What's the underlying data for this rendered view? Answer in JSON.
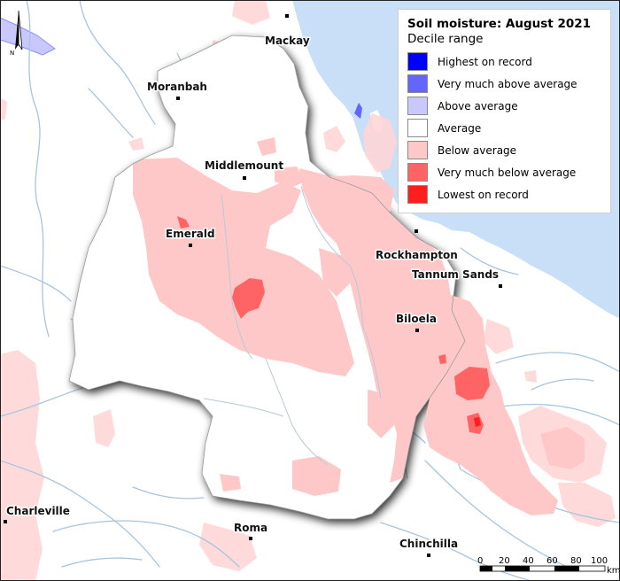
{
  "legend": {
    "title": "Soil moisture: August 2021",
    "subtitle": "Decile range",
    "items": [
      {
        "label": "Highest on record",
        "color": "#0000ff"
      },
      {
        "label": "Very much above average",
        "color": "#6464ff"
      },
      {
        "label": "Above average",
        "color": "#c8c8ff"
      },
      {
        "label": "Average",
        "color": "#ffffff"
      },
      {
        "label": "Below average",
        "color": "#ffc8c8"
      },
      {
        "label": "Very much below average",
        "color": "#ff6464"
      },
      {
        "label": "Lowest on record",
        "color": "#ff1e1e"
      }
    ]
  },
  "towns": {
    "mackay": "Mackay",
    "moranbah": "Moranbah",
    "middlemount": "Middlemount",
    "emerald": "Emerald",
    "rockhampton": "Rockhampton",
    "tannum_sands": "Tannum Sands",
    "biloela": "Biloela",
    "charleville": "Charleville",
    "roma": "Roma",
    "chinchilla": "Chinchilla"
  },
  "scale_bar": {
    "ticks": [
      "0",
      "20",
      "40",
      "60",
      "80",
      "100"
    ],
    "unit": "km"
  },
  "north_arrow": {
    "label": "N"
  },
  "colors": {
    "ocean": "#c8dff7",
    "land": "#ffffff",
    "rivers": "#a9c4dd",
    "catchment_shadow": "#777777"
  }
}
